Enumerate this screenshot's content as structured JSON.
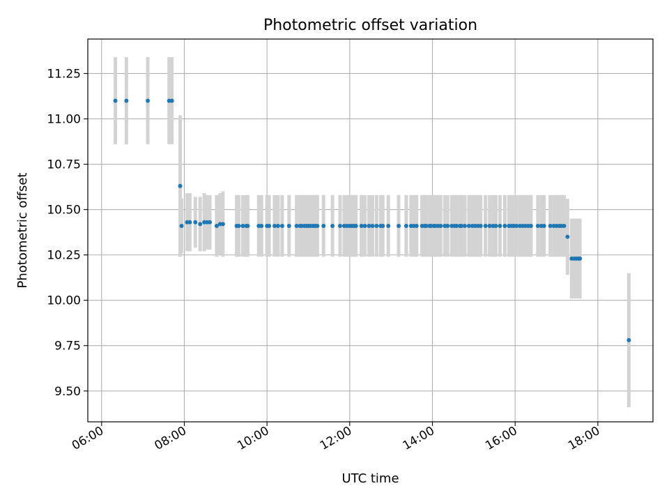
{
  "chart_data": {
    "type": "scatter",
    "title": "Photometric offset variation",
    "xlabel": "UTC time",
    "ylabel": "Photometric offset",
    "x_axis": "time",
    "xlim": [
      "05:40",
      "19:20"
    ],
    "ylim": [
      9.33,
      11.44
    ],
    "x_ticks": [
      "06:00",
      "08:00",
      "10:00",
      "12:00",
      "14:00",
      "16:00",
      "18:00"
    ],
    "y_ticks": [
      "9.50",
      "9.75",
      "10.00",
      "10.25",
      "10.50",
      "10.75",
      "11.00",
      "11.25"
    ],
    "grid": true,
    "colors": {
      "marker": "#1f77b4",
      "error_bar": "#d3d3d3",
      "grid": "#b0b0b0"
    },
    "series": [
      {
        "x": [
          "06:20",
          "06:36",
          "07:07",
          "07:38",
          "07:42",
          "07:54",
          "07:56",
          "08:04",
          "08:08",
          "08:16",
          "08:23",
          "08:29",
          "08:33",
          "08:37",
          "08:47",
          "08:52",
          "08:56",
          "09:16",
          "09:19",
          "09:25",
          "09:30",
          "09:32",
          "09:48",
          "09:52",
          "10:00",
          "10:03",
          "10:11",
          "10:16",
          "10:22",
          "10:32",
          "10:43",
          "10:48",
          "10:50",
          "10:54",
          "10:57",
          "11:00",
          "11:03",
          "11:07",
          "11:10",
          "11:13",
          "11:22",
          "11:35",
          "11:46",
          "11:52",
          "11:56",
          "12:00",
          "12:03",
          "12:06",
          "12:09",
          "12:17",
          "12:22",
          "12:28",
          "12:33",
          "12:39",
          "12:45",
          "12:48",
          "12:56",
          "13:11",
          "13:22",
          "13:29",
          "13:33",
          "13:37",
          "13:45",
          "13:49",
          "13:51",
          "13:56",
          "13:58",
          "14:02",
          "14:04",
          "14:08",
          "14:12",
          "14:18",
          "14:22",
          "14:28",
          "14:32",
          "14:35",
          "14:40",
          "14:42",
          "14:47",
          "14:53",
          "14:58",
          "15:02",
          "15:06",
          "15:10",
          "15:17",
          "15:23",
          "15:28",
          "15:32",
          "15:38",
          "15:45",
          "15:51",
          "15:55",
          "15:58",
          "16:02",
          "16:07",
          "16:11",
          "16:15",
          "16:19",
          "16:23",
          "16:33",
          "16:38",
          "16:42",
          "16:51",
          "16:56",
          "17:00",
          "17:04",
          "17:07",
          "17:11",
          "17:16",
          "17:22",
          "17:26",
          "17:29",
          "17:32",
          "17:34",
          "18:45"
        ],
        "y": [
          11.1,
          11.1,
          11.1,
          11.1,
          11.1,
          10.63,
          10.41,
          10.43,
          10.43,
          10.43,
          10.42,
          10.43,
          10.43,
          10.43,
          10.41,
          10.42,
          10.42,
          10.41,
          10.41,
          10.41,
          10.41,
          10.41,
          10.41,
          10.41,
          10.41,
          10.41,
          10.41,
          10.41,
          10.41,
          10.41,
          10.41,
          10.41,
          10.41,
          10.41,
          10.41,
          10.41,
          10.41,
          10.41,
          10.41,
          10.41,
          10.41,
          10.41,
          10.41,
          10.41,
          10.41,
          10.41,
          10.41,
          10.41,
          10.41,
          10.41,
          10.41,
          10.41,
          10.41,
          10.41,
          10.41,
          10.41,
          10.41,
          10.41,
          10.41,
          10.41,
          10.41,
          10.41,
          10.41,
          10.41,
          10.41,
          10.41,
          10.41,
          10.41,
          10.41,
          10.41,
          10.41,
          10.41,
          10.41,
          10.41,
          10.41,
          10.41,
          10.41,
          10.41,
          10.41,
          10.41,
          10.41,
          10.41,
          10.41,
          10.41,
          10.41,
          10.41,
          10.41,
          10.41,
          10.41,
          10.41,
          10.41,
          10.41,
          10.41,
          10.41,
          10.41,
          10.41,
          10.41,
          10.41,
          10.41,
          10.41,
          10.41,
          10.41,
          10.41,
          10.41,
          10.41,
          10.41,
          10.41,
          10.41,
          10.35,
          10.23,
          10.23,
          10.23,
          10.23,
          10.23,
          9.78
        ],
        "err": [
          0.24,
          0.24,
          0.24,
          0.24,
          0.24,
          0.39,
          0.15,
          0.16,
          0.16,
          0.14,
          0.15,
          0.16,
          0.15,
          0.15,
          0.17,
          0.17,
          0.18,
          0.17,
          0.17,
          0.17,
          0.17,
          0.17,
          0.17,
          0.17,
          0.17,
          0.17,
          0.17,
          0.17,
          0.17,
          0.17,
          0.17,
          0.17,
          0.17,
          0.17,
          0.17,
          0.17,
          0.17,
          0.17,
          0.17,
          0.17,
          0.17,
          0.17,
          0.17,
          0.17,
          0.17,
          0.17,
          0.17,
          0.17,
          0.17,
          0.17,
          0.17,
          0.17,
          0.17,
          0.17,
          0.17,
          0.17,
          0.17,
          0.17,
          0.17,
          0.17,
          0.17,
          0.17,
          0.17,
          0.17,
          0.17,
          0.17,
          0.17,
          0.17,
          0.17,
          0.17,
          0.17,
          0.17,
          0.17,
          0.17,
          0.17,
          0.17,
          0.17,
          0.17,
          0.17,
          0.17,
          0.17,
          0.17,
          0.17,
          0.17,
          0.17,
          0.17,
          0.17,
          0.17,
          0.17,
          0.17,
          0.17,
          0.17,
          0.17,
          0.17,
          0.17,
          0.17,
          0.17,
          0.17,
          0.17,
          0.17,
          0.17,
          0.17,
          0.17,
          0.17,
          0.17,
          0.17,
          0.17,
          0.17,
          0.21,
          0.22,
          0.22,
          0.22,
          0.22,
          0.22,
          0.37
        ]
      }
    ]
  }
}
